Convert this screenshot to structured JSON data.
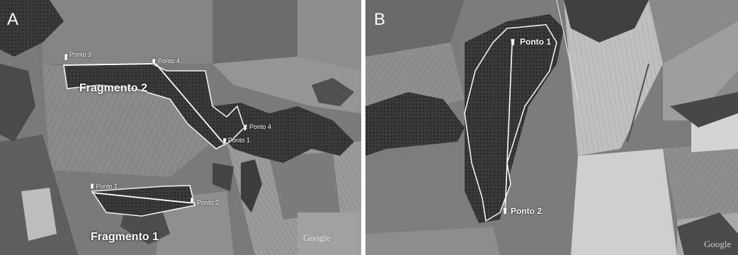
{
  "panel_a": {
    "letter": "A",
    "fragment_2_label": "Fragmento 2",
    "fragment_1_label": "Fragmento 1",
    "pins": [
      "Ponto 3",
      "Ponto 4",
      "Ponto 4",
      "Ponto 1",
      "Ponto 1",
      "Ponto 2"
    ],
    "watermark": "Google"
  },
  "panel_b": {
    "letter": "B",
    "pins": [
      "Ponto 1",
      "Ponto 2"
    ],
    "watermark": "Google"
  }
}
